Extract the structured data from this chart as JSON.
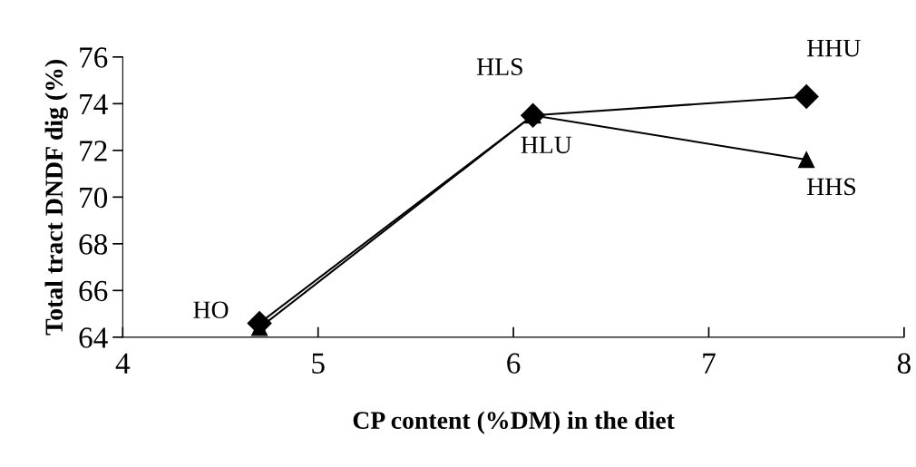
{
  "chart_data": {
    "type": "line",
    "xlabel": "CP content (%DM) in the diet",
    "ylabel": "Total tract DNDF dig (%)",
    "xlim": [
      4,
      8
    ],
    "xticks": [
      4,
      5,
      6,
      7,
      8
    ],
    "ylim": [
      64,
      76
    ],
    "yticks": [
      64,
      66,
      68,
      70,
      72,
      74,
      76
    ],
    "grid": false,
    "legend": false,
    "series": [
      {
        "color": "#000000",
        "marker": "diamond",
        "x": [
          4.7,
          6.1,
          7.5
        ],
        "values": [
          64.6,
          73.5,
          74.3
        ]
      },
      {
        "color": "#000000",
        "marker": "triangle",
        "x": [
          4.7,
          6.1,
          7.5
        ],
        "values": [
          64.4,
          73.5,
          71.6
        ]
      }
    ],
    "annotations": [
      {
        "text": "HO",
        "x": 4.7,
        "y": 64.6
      },
      {
        "text": "HLS",
        "x": 6.1,
        "y": 73.5
      },
      {
        "text": "HLU",
        "x": 6.1,
        "y": 73.5
      },
      {
        "text": "HHU",
        "x": 7.5,
        "y": 74.3
      },
      {
        "text": "HHS",
        "x": 7.5,
        "y": 71.6
      }
    ]
  }
}
